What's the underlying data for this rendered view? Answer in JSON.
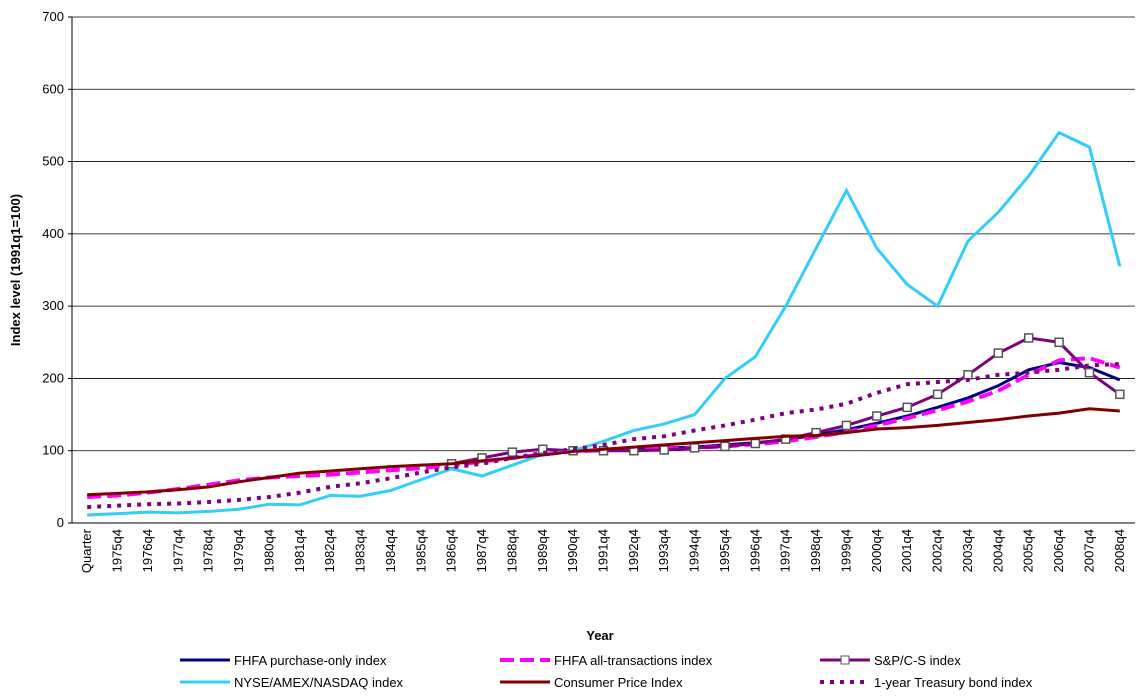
{
  "chart_data": {
    "type": "line",
    "x_label": "Year",
    "y_label": "Index level (1991q1=100)",
    "categories": [
      "Quarter",
      "1975q4",
      "1976q4",
      "1977q4",
      "1978q4",
      "1979q4",
      "1980q4",
      "1981q4",
      "1982q4",
      "1983q4",
      "1984q4",
      "1985q4",
      "1986q4",
      "1987q4",
      "1988q4",
      "1989q4",
      "1990q4",
      "1991q4",
      "1992q4",
      "1993q4",
      "1994q4",
      "1995q4",
      "1996q4",
      "1997q4",
      "1998q4",
      "1999q4",
      "2000q4",
      "2001q4",
      "2002q4",
      "2003q4",
      "2004q4",
      "2005q4",
      "2006q4",
      "2007q4",
      "2008q4"
    ],
    "ylim": [
      0,
      700
    ],
    "yticks": [
      0,
      100,
      200,
      300,
      400,
      500,
      600,
      700
    ],
    "grid": true,
    "series": [
      {
        "name": "FHFA purchase-only index",
        "color": "#000080",
        "dash": "solid",
        "values": [
          null,
          null,
          null,
          null,
          null,
          null,
          null,
          null,
          null,
          null,
          null,
          null,
          null,
          null,
          null,
          null,
          99,
          101,
          102,
          104,
          105,
          108,
          111,
          115,
          122,
          129,
          138,
          148,
          160,
          173,
          190,
          212,
          222,
          215,
          198
        ]
      },
      {
        "name": "FHFA all-transactions index",
        "color": "#ff00ff",
        "dash": "dashed",
        "values": [
          36,
          38,
          42,
          47,
          53,
          59,
          63,
          65,
          67,
          70,
          73,
          76,
          80,
          85,
          90,
          95,
          99,
          101,
          102,
          103,
          104,
          106,
          109,
          113,
          119,
          126,
          135,
          145,
          156,
          168,
          183,
          205,
          225,
          228,
          215
        ]
      },
      {
        "name": "S&P/C-S index",
        "color": "#800080",
        "dash": "solid",
        "marker": "square",
        "values": [
          null,
          null,
          null,
          null,
          null,
          null,
          null,
          null,
          null,
          null,
          null,
          null,
          82,
          90,
          98,
          102,
          100,
          100,
          100,
          101,
          104,
          106,
          110,
          116,
          125,
          135,
          148,
          160,
          178,
          205,
          235,
          256,
          250,
          208,
          178
        ]
      },
      {
        "name": "NYSE/AMEX/NASDAQ index",
        "color": "#33ccff",
        "dash": "solid",
        "values": [
          11,
          13,
          15,
          14,
          16,
          19,
          26,
          25,
          38,
          37,
          45,
          60,
          75,
          65,
          80,
          95,
          100,
          113,
          128,
          137,
          150,
          200,
          230,
          300,
          380,
          460,
          380,
          330,
          300,
          390,
          430,
          480,
          540,
          520,
          355
        ]
      },
      {
        "name": "Consumer Price Index",
        "color": "#800000",
        "dash": "solid",
        "values": [
          39,
          41,
          43,
          46,
          50,
          57,
          63,
          69,
          72,
          75,
          78,
          80,
          82,
          86,
          90,
          94,
          99,
          102,
          105,
          108,
          111,
          114,
          117,
          120,
          121,
          125,
          130,
          132,
          135,
          139,
          143,
          148,
          152,
          158,
          155
        ]
      },
      {
        "name": "1-year Treasury bond index",
        "color": "#800080",
        "dash": "dotted",
        "values": [
          22,
          24,
          26,
          27,
          29,
          32,
          36,
          42,
          50,
          55,
          62,
          70,
          77,
          82,
          90,
          97,
          102,
          108,
          116,
          120,
          128,
          135,
          143,
          152,
          157,
          165,
          180,
          192,
          195,
          198,
          205,
          208,
          212,
          218,
          220
        ]
      }
    ]
  }
}
